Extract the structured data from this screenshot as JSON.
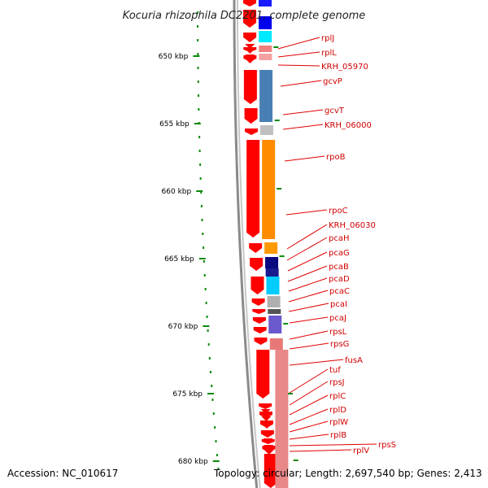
{
  "title": "Kocuria rhizophila DC2201, complete genome",
  "accession": "Accession: NC_010617",
  "topology": "Topology: circular; Length: 2,697,540 bp; Genes: 2,413",
  "colors": {
    "scale_tick": "#0a8a0a",
    "backbone": "#909090",
    "forward_gene": "#ff0000",
    "label": "#d00000",
    "leader": "#e00000"
  },
  "scale": [
    {
      "label": "650 kbp"
    },
    {
      "label": "655 kbp"
    },
    {
      "label": "660 kbp"
    },
    {
      "label": "665 kbp"
    },
    {
      "label": "670 kbp"
    },
    {
      "label": "675 kbp"
    },
    {
      "label": "680 kbp"
    }
  ],
  "genes": [
    {
      "name": "rplJ"
    },
    {
      "name": "rplL"
    },
    {
      "name": "KRH_05970"
    },
    {
      "name": "gcvP"
    },
    {
      "name": "gcvT"
    },
    {
      "name": "KRH_06000"
    },
    {
      "name": "rpoB"
    },
    {
      "name": "rpoC"
    },
    {
      "name": "KRH_06030"
    },
    {
      "name": "pcaH"
    },
    {
      "name": "pcaG"
    },
    {
      "name": "pcaB"
    },
    {
      "name": "pcaD"
    },
    {
      "name": "pcaC"
    },
    {
      "name": "pcaI"
    },
    {
      "name": "pcaJ"
    },
    {
      "name": "rpsL"
    },
    {
      "name": "rpsG"
    },
    {
      "name": "fusA"
    },
    {
      "name": "tuf"
    },
    {
      "name": "rpsJ"
    },
    {
      "name": "rplC"
    },
    {
      "name": "rplD"
    },
    {
      "name": "rplW"
    },
    {
      "name": "rplB"
    },
    {
      "name": "rpsS"
    },
    {
      "name": "rplV"
    }
  ]
}
